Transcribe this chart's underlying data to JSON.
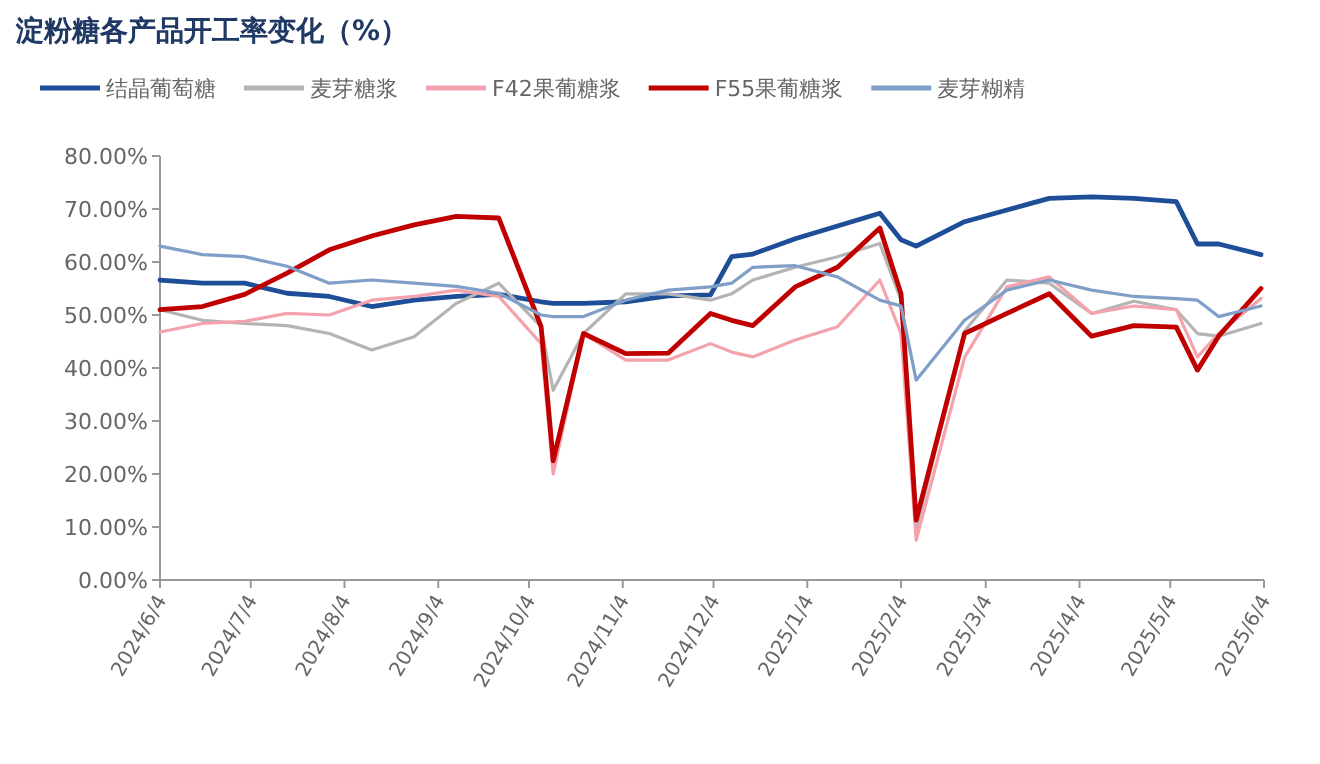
{
  "chart_data": {
    "type": "line",
    "title": "淀粉糖各产品开工率变化（%）",
    "x": [
      "2024-06-04",
      "2024-06-18",
      "2024-07-02",
      "2024-07-16",
      "2024-07-30",
      "2024-08-13",
      "2024-08-27",
      "2024-09-10",
      "2024-09-24",
      "2024-10-08",
      "2024-10-12",
      "2024-10-22",
      "2024-11-05",
      "2024-11-19",
      "2024-12-03",
      "2024-12-10",
      "2024-12-17",
      "2024-12-31",
      "2025-01-14",
      "2025-01-28",
      "2025-02-04",
      "2025-02-09",
      "2025-02-25",
      "2025-03-11",
      "2025-03-25",
      "2025-04-08",
      "2025-04-22",
      "2025-05-06",
      "2025-05-13",
      "2025-05-20",
      "2025-06-03"
    ],
    "series": [
      {
        "name": "结晶葡萄糖",
        "color": "#1f4e99",
        "values": [
          56.6,
          56,
          56,
          54.1,
          53.5,
          51.6,
          52.8,
          53.5,
          53.9,
          52.5,
          52.2,
          52.2,
          52.5,
          53.6,
          53.8,
          61,
          61.5,
          64.4,
          66.8,
          69.2,
          64.2,
          63,
          67.6,
          69.8,
          72,
          72.3,
          72,
          71.4,
          63.4,
          63.4,
          61.4
        ]
      },
      {
        "name": "麦芽糖浆",
        "color": "#b4b4b4",
        "values": [
          51,
          49,
          48.4,
          48,
          46.5,
          43.4,
          45.9,
          52.2,
          56,
          47.8,
          35.8,
          46.5,
          54,
          54,
          52.8,
          54,
          56.6,
          59,
          61,
          63.5,
          52.8,
          9.5,
          47,
          56.6,
          56,
          50.3,
          52.6,
          51,
          46.5,
          46,
          48.4
        ]
      },
      {
        "name": "F42果葡糖浆",
        "color": "#f4a3ad",
        "values": [
          46.8,
          48.4,
          48.8,
          50.3,
          50,
          52.8,
          53.5,
          54.7,
          53.5,
          44.6,
          20,
          46.5,
          41.5,
          41.5,
          44.6,
          43,
          42.1,
          45.3,
          47.8,
          56.6,
          46.5,
          7.5,
          42,
          55.3,
          57.2,
          50.3,
          51.7,
          51,
          42.1,
          46.5,
          53.1
        ]
      },
      {
        "name": "F55果葡糖浆",
        "color": "#c00000",
        "values": [
          51,
          51.6,
          53.9,
          57.9,
          62.3,
          64.9,
          67,
          68.6,
          68.3,
          47.8,
          22.5,
          46.5,
          42.7,
          42.8,
          50.3,
          49,
          48,
          55.3,
          59,
          66.4,
          54,
          11.3,
          46.5,
          50.3,
          54,
          46,
          48,
          47.7,
          39.6,
          46,
          55
        ]
      },
      {
        "name": "麦芽糊精",
        "color": "#7f9fc8",
        "values": [
          63,
          61.4,
          61,
          59.2,
          56,
          56.6,
          56,
          55.4,
          54.1,
          50,
          49.7,
          49.7,
          52.8,
          54.7,
          55.3,
          56,
          59,
          59.3,
          57.2,
          52.8,
          51.7,
          37.7,
          49,
          54.7,
          56.6,
          54.7,
          53.5,
          53.1,
          52.8,
          49.7,
          51.7
        ]
      }
    ],
    "xlim": [
      "2024-06-04",
      "2025-06-04"
    ],
    "xticks": [
      {
        "value": "2024-06-04",
        "label": "2024/6/4"
      },
      {
        "value": "2024-07-04",
        "label": "2024/7/4"
      },
      {
        "value": "2024-08-04",
        "label": "2024/8/4"
      },
      {
        "value": "2024-09-04",
        "label": "2024/9/4"
      },
      {
        "value": "2024-10-04",
        "label": "2024/10/4"
      },
      {
        "value": "2024-11-04",
        "label": "2024/11/4"
      },
      {
        "value": "2024-12-04",
        "label": "2024/12/4"
      },
      {
        "value": "2025-01-04",
        "label": "2025/1/4"
      },
      {
        "value": "2025-02-04",
        "label": "2025/2/4"
      },
      {
        "value": "2025-03-04",
        "label": "2025/3/4"
      },
      {
        "value": "2025-04-04",
        "label": "2025/4/4"
      },
      {
        "value": "2025-05-04",
        "label": "2025/5/4"
      },
      {
        "value": "2025-06-04",
        "label": "2025/6/4"
      }
    ],
    "ylim": [
      0,
      80
    ],
    "yticks": [
      {
        "value": 0,
        "label": "0.00%"
      },
      {
        "value": 10,
        "label": "10.00%"
      },
      {
        "value": 20,
        "label": "20.00%"
      },
      {
        "value": 30,
        "label": "30.00%"
      },
      {
        "value": 40,
        "label": "40.00%"
      },
      {
        "value": 50,
        "label": "50.00%"
      },
      {
        "value": 60,
        "label": "60.00%"
      },
      {
        "value": 70,
        "label": "70.00%"
      },
      {
        "value": 80,
        "label": "80.00%"
      }
    ],
    "legend": "top",
    "grid": false,
    "line_style": "solid",
    "marker": "none"
  }
}
